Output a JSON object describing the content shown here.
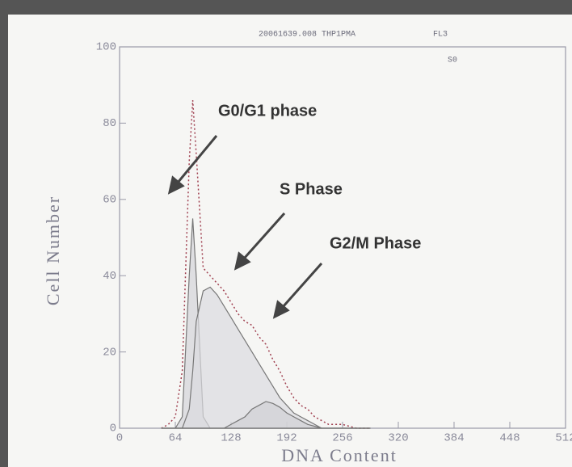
{
  "chart_data": {
    "type": "area",
    "header": "20061639.008 THP1PMA",
    "channel": "FL3",
    "tag": "S0",
    "x_label": "DNA Content",
    "y_label": "Cell Number",
    "annotations": [
      "G0/G1 phase",
      "S Phase",
      "G2/M Phase"
    ],
    "x": [
      48,
      56,
      64,
      72,
      80,
      84,
      88,
      96,
      104,
      112,
      120,
      128,
      136,
      144,
      152,
      160,
      168,
      176,
      184,
      192,
      200,
      208,
      216,
      224,
      232,
      240,
      256,
      272,
      288
    ],
    "series": [
      {
        "color": "#a04050",
        "dashed": true,
        "values": [
          0,
          1,
          3,
          15,
          70,
          86,
          72,
          42,
          40,
          38,
          36,
          33,
          30,
          28,
          27,
          24,
          22,
          18,
          15,
          11,
          8,
          6,
          5,
          3,
          2,
          1,
          1,
          0,
          0
        ]
      },
      {
        "color": "#777777",
        "fill": "#d4d4d8",
        "values": [
          0,
          0,
          0,
          3,
          40,
          55,
          40,
          3,
          0,
          0,
          0,
          0,
          0,
          0,
          0,
          0,
          0,
          0,
          0,
          0,
          0,
          0,
          0,
          0,
          0,
          0,
          0,
          0,
          0
        ]
      },
      {
        "color": "#777777",
        "fill": "#dcdce0",
        "values": [
          0,
          0,
          0,
          0,
          5,
          15,
          28,
          36,
          37,
          35,
          32,
          29,
          26,
          23,
          20,
          17,
          14,
          11,
          8,
          6,
          4,
          3,
          2,
          1,
          0,
          0,
          0,
          0,
          0
        ]
      },
      {
        "color": "#777777",
        "fill": "#d0d0d4",
        "values": [
          0,
          0,
          0,
          0,
          0,
          0,
          0,
          0,
          0,
          0,
          0,
          1,
          2,
          3,
          5,
          6,
          7,
          6.5,
          5.5,
          4,
          3,
          2,
          1,
          0.5,
          0,
          0,
          0,
          0,
          0
        ]
      }
    ],
    "xlim": [
      0,
      512
    ],
    "ylim": [
      0,
      100
    ],
    "xticks": [
      0,
      64,
      128,
      192,
      256,
      320,
      384,
      448,
      512
    ],
    "yticks": [
      0,
      20,
      40,
      60,
      80,
      100
    ]
  }
}
